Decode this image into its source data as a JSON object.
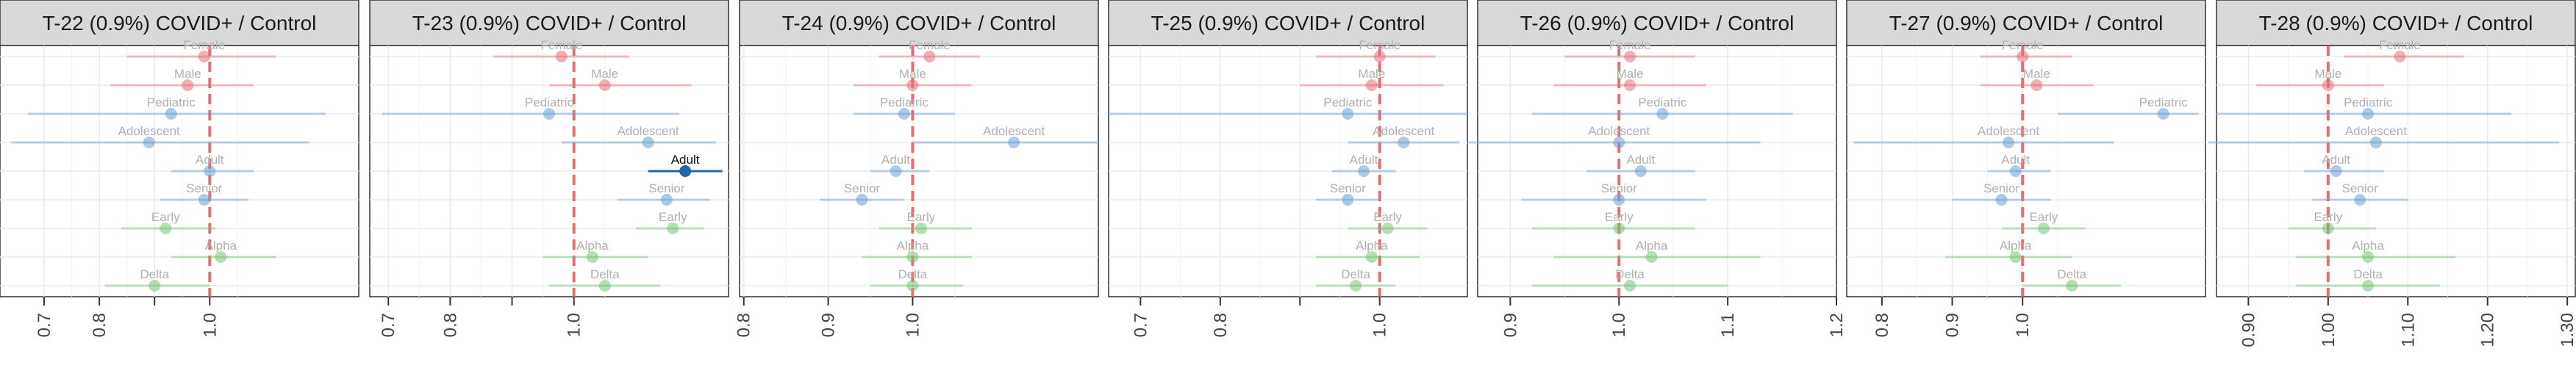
{
  "chart_data": {
    "type": "forest",
    "category_labels": [
      "Female",
      "Male",
      "Pediatric",
      "Adolescent",
      "Adult",
      "Senior",
      "Early",
      "Alpha",
      "Delta"
    ],
    "category_colors": {
      "Female": "#e8707a",
      "Male": "#e8707a",
      "Pediatric": "#6d9fd3",
      "Adolescent": "#6d9fd3",
      "Adult": "#6d9fd3",
      "Senior": "#6d9fd3",
      "Early": "#74c476",
      "Alpha": "#74c476",
      "Delta": "#74c476"
    },
    "highlight_color": "#2166ac",
    "reference_line_color": "#e8545f",
    "reference_value": 1.0,
    "panels": [
      {
        "title": "T-22 (0.9%) COVID+ / Control",
        "xlim": [
          0.62,
          1.27
        ],
        "ticks": [
          {
            "v": 0.7,
            "l": "0.7"
          },
          {
            "v": 0.8,
            "l": "0.8"
          },
          {
            "v": 0.9,
            "l": ""
          },
          {
            "v": 1.0,
            "l": "1.0"
          }
        ],
        "rows": [
          {
            "label": "Female",
            "est": 0.99,
            "lo": 0.85,
            "hi": 1.12
          },
          {
            "label": "Male",
            "est": 0.96,
            "lo": 0.82,
            "hi": 1.08
          },
          {
            "label": "Pediatric",
            "est": 0.93,
            "lo": 0.67,
            "hi": 1.21
          },
          {
            "label": "Adolescent",
            "est": 0.89,
            "lo": 0.64,
            "hi": 1.18
          },
          {
            "label": "Adult",
            "est": 1.0,
            "lo": 0.93,
            "hi": 1.08
          },
          {
            "label": "Senior",
            "est": 0.99,
            "lo": 0.91,
            "hi": 1.07
          },
          {
            "label": "Early",
            "est": 0.92,
            "lo": 0.84,
            "hi": 1.01
          },
          {
            "label": "Alpha",
            "est": 1.02,
            "lo": 0.93,
            "hi": 1.12
          },
          {
            "label": "Delta",
            "est": 0.9,
            "lo": 0.81,
            "hi": 1.0
          }
        ]
      },
      {
        "title": "T-23 (0.9%) COVID+ / Control",
        "xlim": [
          0.67,
          1.25
        ],
        "ticks": [
          {
            "v": 0.7,
            "l": "0.7"
          },
          {
            "v": 0.8,
            "l": "0.8"
          },
          {
            "v": 0.9,
            "l": ""
          },
          {
            "v": 1.0,
            "l": "1.0"
          }
        ],
        "rows": [
          {
            "label": "Female",
            "est": 0.98,
            "lo": 0.87,
            "hi": 1.09
          },
          {
            "label": "Male",
            "est": 1.05,
            "lo": 0.96,
            "hi": 1.19
          },
          {
            "label": "Pediatric",
            "est": 0.96,
            "lo": 0.69,
            "hi": 1.17
          },
          {
            "label": "Adolescent",
            "est": 1.12,
            "lo": 0.98,
            "hi": 1.23
          },
          {
            "label": "Adult",
            "est": 1.18,
            "lo": 1.12,
            "hi": 1.24,
            "highlight": true
          },
          {
            "label": "Senior",
            "est": 1.15,
            "lo": 1.07,
            "hi": 1.22
          },
          {
            "label": "Early",
            "est": 1.16,
            "lo": 1.1,
            "hi": 1.21
          },
          {
            "label": "Alpha",
            "est": 1.03,
            "lo": 0.95,
            "hi": 1.12
          },
          {
            "label": "Delta",
            "est": 1.05,
            "lo": 0.96,
            "hi": 1.14
          }
        ]
      },
      {
        "title": "T-24 (0.9%) COVID+ / Control",
        "xlim": [
          0.795,
          1.22
        ],
        "ticks": [
          {
            "v": 0.8,
            "l": "0.8"
          },
          {
            "v": 0.9,
            "l": "0.9"
          },
          {
            "v": 1.0,
            "l": "1.0"
          }
        ],
        "rows": [
          {
            "label": "Female",
            "est": 1.02,
            "lo": 0.96,
            "hi": 1.08
          },
          {
            "label": "Male",
            "est": 1.0,
            "lo": 0.93,
            "hi": 1.07
          },
          {
            "label": "Pediatric",
            "est": 0.99,
            "lo": 0.93,
            "hi": 1.05
          },
          {
            "label": "Adolescent",
            "est": 1.12,
            "lo": 1.0,
            "hi": 1.22
          },
          {
            "label": "Adult",
            "est": 0.98,
            "lo": 0.95,
            "hi": 1.02
          },
          {
            "label": "Senior",
            "est": 0.94,
            "lo": 0.89,
            "hi": 0.99
          },
          {
            "label": "Early",
            "est": 1.01,
            "lo": 0.96,
            "hi": 1.07
          },
          {
            "label": "Alpha",
            "est": 1.0,
            "lo": 0.94,
            "hi": 1.07
          },
          {
            "label": "Delta",
            "est": 1.0,
            "lo": 0.95,
            "hi": 1.06
          }
        ]
      },
      {
        "title": "T-25 (0.9%) COVID+ / Control",
        "xlim": [
          0.66,
          1.11
        ],
        "ticks": [
          {
            "v": 0.7,
            "l": "0.7"
          },
          {
            "v": 0.8,
            "l": "0.8"
          },
          {
            "v": 0.9,
            "l": ""
          },
          {
            "v": 1.0,
            "l": "1.0"
          }
        ],
        "rows": [
          {
            "label": "Female",
            "est": 1.0,
            "lo": 0.92,
            "hi": 1.07
          },
          {
            "label": "Male",
            "est": 0.99,
            "lo": 0.9,
            "hi": 1.08
          },
          {
            "label": "Pediatric",
            "est": 0.96,
            "lo": 0.66,
            "hi": 1.11
          },
          {
            "label": "Adolescent",
            "est": 1.03,
            "lo": 0.96,
            "hi": 1.1
          },
          {
            "label": "Adult",
            "est": 0.98,
            "lo": 0.94,
            "hi": 1.02
          },
          {
            "label": "Senior",
            "est": 0.96,
            "lo": 0.92,
            "hi": 1.0
          },
          {
            "label": "Early",
            "est": 1.01,
            "lo": 0.96,
            "hi": 1.06
          },
          {
            "label": "Alpha",
            "est": 0.99,
            "lo": 0.92,
            "hi": 1.05
          },
          {
            "label": "Delta",
            "est": 0.97,
            "lo": 0.92,
            "hi": 1.02
          }
        ]
      },
      {
        "title": "T-26 (0.9%) COVID+ / Control",
        "xlim": [
          0.87,
          1.2
        ],
        "ticks": [
          {
            "v": 0.9,
            "l": "0.9"
          },
          {
            "v": 1.0,
            "l": "1.0"
          },
          {
            "v": 1.1,
            "l": "1.1"
          },
          {
            "v": 1.2,
            "l": "1.2"
          }
        ],
        "rows": [
          {
            "label": "Female",
            "est": 1.01,
            "lo": 0.95,
            "hi": 1.07
          },
          {
            "label": "Male",
            "est": 1.01,
            "lo": 0.94,
            "hi": 1.08
          },
          {
            "label": "Pediatric",
            "est": 1.04,
            "lo": 0.92,
            "hi": 1.16
          },
          {
            "label": "Adolescent",
            "est": 1.0,
            "lo": 0.86,
            "hi": 1.13
          },
          {
            "label": "Adult",
            "est": 1.02,
            "lo": 0.97,
            "hi": 1.07
          },
          {
            "label": "Senior",
            "est": 1.0,
            "lo": 0.91,
            "hi": 1.08
          },
          {
            "label": "Early",
            "est": 1.0,
            "lo": 0.92,
            "hi": 1.07
          },
          {
            "label": "Alpha",
            "est": 1.03,
            "lo": 0.94,
            "hi": 1.13
          },
          {
            "label": "Delta",
            "est": 1.01,
            "lo": 0.92,
            "hi": 1.1
          }
        ]
      },
      {
        "title": "T-27 (0.9%) COVID+ / Control",
        "xlim": [
          0.75,
          1.26
        ],
        "ticks": [
          {
            "v": 0.8,
            "l": "0.8"
          },
          {
            "v": 0.9,
            "l": "0.9"
          },
          {
            "v": 1.0,
            "l": "1.0"
          }
        ],
        "rows": [
          {
            "label": "Female",
            "est": 1.0,
            "lo": 0.94,
            "hi": 1.07
          },
          {
            "label": "Male",
            "est": 1.02,
            "lo": 0.94,
            "hi": 1.1
          },
          {
            "label": "Pediatric",
            "est": 1.2,
            "lo": 1.05,
            "hi": 1.25
          },
          {
            "label": "Adolescent",
            "est": 0.98,
            "lo": 0.76,
            "hi": 1.13
          },
          {
            "label": "Adult",
            "est": 0.99,
            "lo": 0.95,
            "hi": 1.04
          },
          {
            "label": "Senior",
            "est": 0.97,
            "lo": 0.9,
            "hi": 1.04
          },
          {
            "label": "Early",
            "est": 1.03,
            "lo": 0.97,
            "hi": 1.09
          },
          {
            "label": "Alpha",
            "est": 0.99,
            "lo": 0.89,
            "hi": 1.07
          },
          {
            "label": "Delta",
            "est": 1.07,
            "lo": 1.0,
            "hi": 1.14
          }
        ]
      },
      {
        "title": "T-28 (0.9%) COVID+ / Control",
        "xlim": [
          0.86,
          1.31
        ],
        "ticks": [
          {
            "v": 0.9,
            "l": "0.90"
          },
          {
            "v": 1.0,
            "l": "1.00"
          },
          {
            "v": 1.1,
            "l": "1.10"
          },
          {
            "v": 1.2,
            "l": "1.20"
          },
          {
            "v": 1.3,
            "l": "1.30"
          }
        ],
        "rows": [
          {
            "label": "Female",
            "est": 1.09,
            "lo": 1.02,
            "hi": 1.17
          },
          {
            "label": "Male",
            "est": 1.0,
            "lo": 0.91,
            "hi": 1.07
          },
          {
            "label": "Pediatric",
            "est": 1.05,
            "lo": 0.86,
            "hi": 1.23
          },
          {
            "label": "Adolescent",
            "est": 1.06,
            "lo": 0.85,
            "hi": 1.29
          },
          {
            "label": "Adult",
            "est": 1.01,
            "lo": 0.97,
            "hi": 1.07
          },
          {
            "label": "Senior",
            "est": 1.04,
            "lo": 0.98,
            "hi": 1.1
          },
          {
            "label": "Early",
            "est": 1.0,
            "lo": 0.95,
            "hi": 1.06
          },
          {
            "label": "Alpha",
            "est": 1.05,
            "lo": 0.96,
            "hi": 1.16
          },
          {
            "label": "Delta",
            "est": 1.05,
            "lo": 0.96,
            "hi": 1.14
          }
        ]
      }
    ]
  }
}
